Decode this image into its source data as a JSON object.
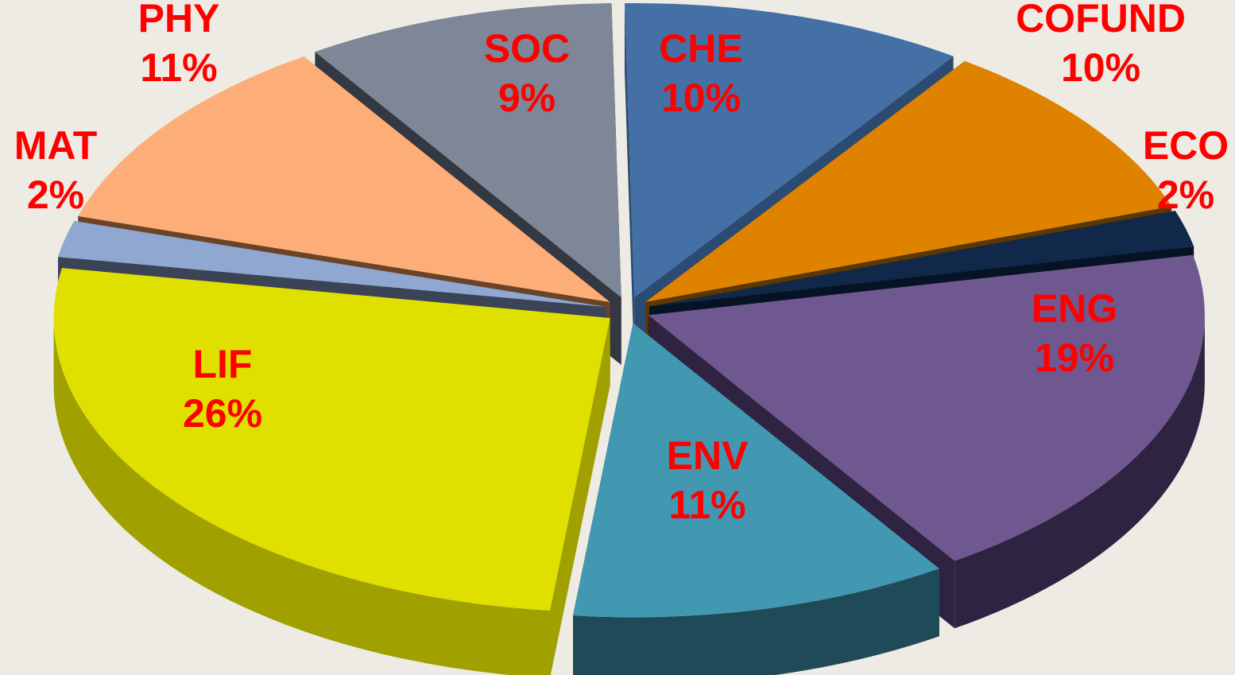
{
  "chart_data": {
    "type": "pie",
    "style": "3d-exploded",
    "unit": "%",
    "legend": "none",
    "slices": [
      {
        "label": "CHE",
        "value": 10,
        "color": "#4470a6",
        "side_color": "#2c4b72"
      },
      {
        "label": "COFUND",
        "value": 10,
        "color": "#df8200",
        "side_color": "#5c3700"
      },
      {
        "label": "ECO",
        "value": 2,
        "color": "#10284a",
        "side_color": "#061325"
      },
      {
        "label": "ENG",
        "value": 19,
        "color": "#6f588f",
        "side_color": "#2e2340"
      },
      {
        "label": "ENV",
        "value": 11,
        "color": "#4298b0",
        "side_color": "#1f4a58"
      },
      {
        "label": "LIF",
        "value": 26,
        "color": "#e0e000",
        "side_color": "#a0a000"
      },
      {
        "label": "MAT",
        "value": 2,
        "color": "#8fa7d1",
        "side_color": "#3b4357"
      },
      {
        "label": "PHY",
        "value": 11,
        "color": "#fdae78",
        "side_color": "#6b4428"
      },
      {
        "label": "SOC",
        "value": 9,
        "color": "#7e8797",
        "side_color": "#343842"
      }
    ]
  }
}
